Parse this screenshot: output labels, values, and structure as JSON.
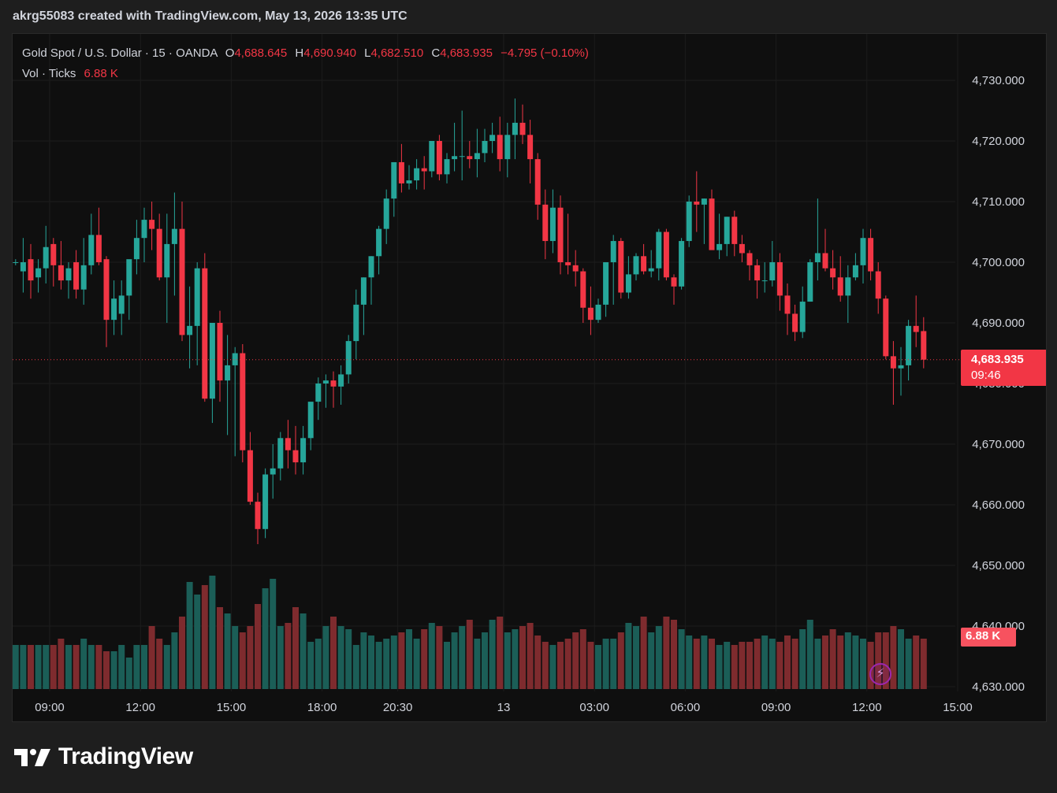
{
  "header": {
    "text": "akrg55083 created with TradingView.com, May 13, 2026 13:35 UTC"
  },
  "legend": {
    "symbol": "Gold Spot / U.S. Dollar · 15 · OANDA",
    "o_label": "O",
    "open": "4,688.645",
    "h_label": "H",
    "high": "4,690.940",
    "l_label": "L",
    "low": "4,682.510",
    "c_label": "C",
    "close": "4,683.935",
    "change": "−4.795 (−0.10%)",
    "vol_label": "Vol · Ticks",
    "vol_value": "6.88 K"
  },
  "price_tag": {
    "price": "4,683.935",
    "countdown": "09:46"
  },
  "vol_tag": {
    "value": "6.88 K"
  },
  "logo": {
    "text": "TradingView"
  },
  "colors": {
    "up": "#26a69a",
    "down": "#f23645",
    "up_vol": "#1b5e57",
    "down_vol": "#7e2b2e",
    "bg": "#0f0f0f"
  },
  "icons": {
    "alert": "lightning-bolt-icon",
    "logo": "tradingview-logo-icon"
  },
  "chart_data": {
    "type": "candlestick",
    "symbol": "Gold Spot / U.S. Dollar",
    "interval": "15",
    "ylim": [
      4630,
      4735
    ],
    "y_ticks": [
      "4,730.000",
      "4,720.000",
      "4,710.000",
      "4,700.000",
      "4,690.000",
      "4,680.000",
      "4,670.000",
      "4,660.000",
      "4,650.000",
      "4,640.000",
      "4,630.000"
    ],
    "x_ticks": [
      {
        "label": "09:00",
        "index": 0
      },
      {
        "label": "12:00",
        "index": 12
      },
      {
        "label": "15:00",
        "index": 24
      },
      {
        "label": "18:00",
        "index": 36
      },
      {
        "label": "20:30",
        "index": 46
      },
      {
        "label": "13",
        "index": 60
      },
      {
        "label": "03:00",
        "index": 72
      },
      {
        "label": "06:00",
        "index": 84
      },
      {
        "label": "09:00",
        "index": 96
      },
      {
        "label": "12:00",
        "index": 108
      },
      {
        "label": "15:00",
        "index": 120
      }
    ],
    "first_index": -4.5,
    "last_price": 4683.935,
    "candles": [
      [
        4700.0,
        4700.5,
        4699.5,
        4700.0
      ],
      [
        4698.5,
        4704.0,
        4695.0,
        4700.0
      ],
      [
        4700.5,
        4703.0,
        4694.0,
        4697.0
      ],
      [
        4697.5,
        4700.5,
        4695.0,
        4699.0
      ],
      [
        4699.0,
        4706.0,
        4696.5,
        4702.5
      ],
      [
        4703.0,
        4704.0,
        4696.0,
        4699.5
      ],
      [
        4699.5,
        4703.5,
        4695.5,
        4697.0
      ],
      [
        4697.0,
        4700.0,
        4694.0,
        4699.0
      ],
      [
        4700.0,
        4702.0,
        4694.0,
        4695.5
      ],
      [
        4695.5,
        4704.0,
        4693.0,
        4699.5
      ],
      [
        4699.5,
        4708.0,
        4698.0,
        4704.5
      ],
      [
        4704.5,
        4709.0,
        4699.5,
        4700.0
      ],
      [
        4700.5,
        4701.0,
        4686.0,
        4690.5
      ],
      [
        4690.5,
        4697.0,
        4688.0,
        4694.0
      ],
      [
        4691.5,
        4697.0,
        4688.0,
        4694.5
      ],
      [
        4694.5,
        4700.0,
        4690.5,
        4700.5
      ],
      [
        4700.5,
        4707.0,
        4698.0,
        4704.0
      ],
      [
        4704.0,
        4709.0,
        4700.0,
        4707.0
      ],
      [
        4707.0,
        4710.0,
        4702.0,
        4705.5
      ],
      [
        4705.5,
        4708.0,
        4697.0,
        4697.5
      ],
      [
        4697.5,
        4708.0,
        4690.0,
        4703.0
      ],
      [
        4703.0,
        4711.5,
        4694.5,
        4705.5
      ],
      [
        4705.5,
        4710.0,
        4687.0,
        4688.0
      ],
      [
        4688.0,
        4696.0,
        4682.5,
        4689.5
      ],
      [
        4689.5,
        4700.0,
        4683.0,
        4699.0
      ],
      [
        4699.0,
        4701.5,
        4677.0,
        4677.5
      ],
      [
        4677.5,
        4690.0,
        4673.5,
        4690.0
      ],
      [
        4690.0,
        4692.0,
        4677.0,
        4680.5
      ],
      [
        4680.5,
        4688.0,
        4671.5,
        4683.0
      ],
      [
        4683.0,
        4686.0,
        4668.0,
        4685.0
      ],
      [
        4685.0,
        4686.5,
        4667.0,
        4669.0
      ],
      [
        4669.0,
        4672.0,
        4660.0,
        4660.5
      ],
      [
        4660.5,
        4662.0,
        4653.5,
        4656.0
      ],
      [
        4656.0,
        4666.0,
        4654.5,
        4665.0
      ],
      [
        4665.0,
        4670.0,
        4661.0,
        4666.0
      ],
      [
        4666.0,
        4672.0,
        4664.0,
        4671.0
      ],
      [
        4671.0,
        4674.0,
        4666.0,
        4669.0
      ],
      [
        4669.0,
        4673.0,
        4665.0,
        4667.0
      ],
      [
        4667.0,
        4673.0,
        4665.0,
        4671.0
      ],
      [
        4671.0,
        4676.0,
        4669.0,
        4677.0
      ],
      [
        4677.0,
        4681.0,
        4674.0,
        4680.0
      ],
      [
        4680.0,
        4681.5,
        4676.0,
        4680.5
      ],
      [
        4680.5,
        4682.0,
        4676.0,
        4679.5
      ],
      [
        4679.5,
        4683.0,
        4676.5,
        4681.5
      ],
      [
        4681.5,
        4688.0,
        4680.0,
        4687.0
      ],
      [
        4687.0,
        4695.5,
        4684.0,
        4693.0
      ],
      [
        4693.0,
        4697.5,
        4688.0,
        4697.5
      ],
      [
        4697.5,
        4701.0,
        4693.0,
        4701.0
      ],
      [
        4701.0,
        4706.0,
        4698.0,
        4705.5
      ],
      [
        4705.5,
        4712.0,
        4703.0,
        4710.5
      ],
      [
        4710.5,
        4716.5,
        4707.5,
        4716.5
      ],
      [
        4716.5,
        4719.5,
        4711.5,
        4713.0
      ],
      [
        4713.0,
        4716.0,
        4712.0,
        4713.5
      ],
      [
        4713.5,
        4717.0,
        4712.0,
        4715.5
      ],
      [
        4715.5,
        4717.5,
        4712.0,
        4715.0
      ],
      [
        4715.0,
        4720.0,
        4714.0,
        4720.0
      ],
      [
        4720.0,
        4721.0,
        4713.5,
        4714.5
      ],
      [
        4714.5,
        4718.0,
        4713.0,
        4717.0
      ],
      [
        4717.0,
        4723.0,
        4715.0,
        4717.5
      ],
      [
        4717.5,
        4725.0,
        4713.5,
        4717.5
      ]
    ],
    "candles_2": [
      [
        4717.5,
        4720.0,
        4715.5,
        4717.0
      ],
      [
        4717.0,
        4722.0,
        4714.0,
        4718.0
      ],
      [
        4718.0,
        4722.0,
        4716.5,
        4720.0
      ],
      [
        4720.0,
        4723.0,
        4718.0,
        4721.0
      ],
      [
        4721.0,
        4724.0,
        4715.0,
        4717.0
      ],
      [
        4717.0,
        4723.0,
        4714.0,
        4721.0
      ],
      [
        4721.0,
        4727.0,
        4717.0,
        4723.0
      ],
      [
        4723.0,
        4726.0,
        4719.5,
        4721.0
      ],
      [
        4721.0,
        4723.5,
        4713.0,
        4717.0
      ],
      [
        4717.0,
        4718.0,
        4707.0,
        4709.5
      ],
      [
        4709.5,
        4712.0,
        4700.5,
        4703.5
      ],
      [
        4703.5,
        4712.0,
        4701.5,
        4709.0
      ],
      [
        4709.0,
        4711.0,
        4698.0,
        4700.0
      ],
      [
        4700.0,
        4708.0,
        4698.0,
        4699.5
      ],
      [
        4699.5,
        4702.0,
        4696.0,
        4698.5
      ],
      [
        4698.5,
        4699.0,
        4690.0,
        4692.5
      ],
      [
        4692.5,
        4696.0,
        4688.0,
        4690.5
      ],
      [
        4690.5,
        4694.0,
        4690.0,
        4693.0
      ],
      [
        4693.0,
        4700.0,
        4691.0,
        4700.0
      ],
      [
        4700.0,
        4704.5,
        4693.0,
        4703.5
      ],
      [
        4703.5,
        4704.0,
        4694.0,
        4695.0
      ],
      [
        4695.0,
        4701.0,
        4694.0,
        4698.0
      ],
      [
        4698.0,
        4701.5,
        4697.0,
        4701.0
      ],
      [
        4701.0,
        4703.0,
        4698.0,
        4698.5
      ],
      [
        4698.5,
        4702.0,
        4697.5,
        4699.0
      ],
      [
        4699.0,
        4705.5,
        4697.0,
        4705.0
      ],
      [
        4705.0,
        4705.5,
        4697.0,
        4697.5
      ],
      [
        4697.5,
        4698.0,
        4693.0,
        4696.0
      ],
      [
        4696.0,
        4704.0,
        4695.5,
        4703.5
      ],
      [
        4703.5,
        4711.0,
        4702.5,
        4710.0
      ],
      [
        4710.0,
        4715.0,
        4705.0,
        4709.5
      ],
      [
        4709.5,
        4710.5,
        4703.0,
        4710.5
      ],
      [
        4710.5,
        4712.0,
        4703.0,
        4702.0
      ],
      [
        4702.0,
        4708.0,
        4700.5,
        4703.0
      ],
      [
        4703.0,
        4707.5,
        4701.0,
        4707.5
      ],
      [
        4707.5,
        4708.5,
        4701.0,
        4703.0
      ],
      [
        4703.0,
        4704.5,
        4700.0,
        4701.5
      ],
      [
        4701.5,
        4702.0,
        4697.0,
        4699.5
      ],
      [
        4699.5,
        4700.5,
        4694.0,
        4697.0
      ],
      [
        4697.0,
        4700.0,
        4695.0,
        4697.0
      ],
      [
        4697.0,
        4703.5,
        4696.0,
        4700.0
      ],
      [
        4700.0,
        4701.5,
        4692.0,
        4694.5
      ],
      [
        4694.5,
        4696.5,
        4688.0,
        4691.5
      ],
      [
        4691.5,
        4693.0,
        4687.0,
        4688.5
      ],
      [
        4688.5,
        4696.0,
        4687.5,
        4693.5
      ],
      [
        4693.5,
        4700.5,
        4693.5,
        4700.0
      ],
      [
        4700.0,
        4710.5,
        4697.0,
        4701.5
      ],
      [
        4701.5,
        4705.5,
        4698.5,
        4699.0
      ],
      [
        4699.0,
        4702.0,
        4695.5,
        4697.5
      ],
      [
        4697.5,
        4701.0,
        4693.5,
        4694.5
      ],
      [
        4694.5,
        4699.5,
        4690.0,
        4697.5
      ],
      [
        4697.5,
        4701.5,
        4697.0,
        4699.5
      ],
      [
        4699.5,
        4705.5,
        4696.5,
        4704.0
      ],
      [
        4704.0,
        4705.5,
        4697.0,
        4698.5
      ],
      [
        4698.5,
        4700.0,
        4691.5,
        4694.0
      ],
      [
        4694.0,
        4694.5,
        4684.0,
        4684.5
      ],
      [
        4684.5,
        4687.0,
        4676.5,
        4682.5
      ],
      [
        4682.5,
        4686.0,
        4678.0,
        4683.0
      ],
      [
        4683.0,
        4690.5,
        4680.5,
        4689.5
      ],
      [
        4689.5,
        4694.5,
        4686.0,
        4688.5
      ],
      [
        4688.645,
        4690.94,
        4682.51,
        4683.935
      ]
    ],
    "volume_ylim": [
      0,
      25
    ],
    "volume_unit": "K ticks",
    "volume": [
      7.0,
      7.0,
      7.0,
      7.0,
      7.0,
      7.0,
      8.0,
      7.0,
      7.0,
      8.0,
      7.0,
      7.0,
      6.0,
      6.0,
      7.0,
      5.0,
      7.0,
      7.0,
      10.0,
      8.0,
      7.0,
      9.0,
      11.5,
      17.0,
      15.0,
      16.5,
      18.0,
      13.0,
      12.0,
      10.0,
      9.0,
      10.0,
      13.5,
      16.0,
      17.5,
      10.0,
      10.5,
      13.0,
      12.0,
      7.5,
      8.0,
      10.0,
      11.5,
      10.0,
      9.5,
      7.0,
      9.0,
      8.5,
      7.5,
      8.0,
      8.5,
      9.0,
      9.5,
      8.0,
      9.5,
      10.5,
      10.0,
      7.5,
      9.0,
      10.0,
      11.0,
      8.0,
      9.0,
      11.0,
      11.5,
      9.0,
      9.5,
      10.0,
      10.5,
      8.5,
      7.5,
      7.0,
      7.5,
      8.0,
      9.0,
      9.5,
      7.5,
      7.0,
      8.0,
      8.0,
      9.0,
      10.5,
      10.0,
      11.5,
      9.0,
      10.0,
      11.5,
      11.0,
      9.5,
      8.5,
      8.0,
      8.5,
      8.0,
      7.0,
      7.5,
      7.0,
      7.5,
      7.5,
      8.0,
      8.5,
      8.0,
      7.5,
      8.5,
      8.0,
      9.5,
      11.0,
      8.0,
      8.5,
      9.5,
      8.5,
      9.0,
      8.5,
      8.0,
      7.5,
      9.0,
      9.0,
      10.0,
      9.5,
      8.0,
      8.5,
      8.0
    ]
  }
}
